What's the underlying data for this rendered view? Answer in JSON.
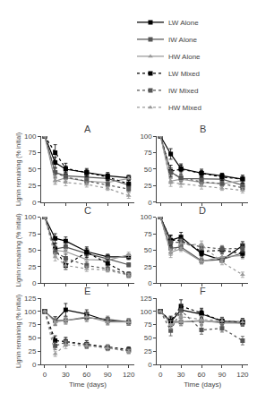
{
  "chart_data": [
    {
      "type": "line",
      "title": "A",
      "ylabel": "Lignin remaining (% initial)",
      "x": [
        0,
        15,
        30,
        60,
        90,
        120
      ],
      "xlim": [
        -5,
        128
      ],
      "xticks": [
        0,
        30,
        60,
        90,
        120
      ],
      "ylim": [
        0,
        100
      ],
      "yticks": [
        0,
        25,
        50,
        75,
        100
      ],
      "grid": false,
      "tick_labels": "y",
      "series": [
        {
          "name": "LW Alone",
          "color": "#000000",
          "line_style": "solid",
          "marker": "square",
          "values": [
            100,
            60,
            50,
            45,
            40,
            37
          ],
          "error": [
            0,
            8,
            5,
            4,
            5,
            4
          ]
        },
        {
          "name": "IW Alone",
          "color": "#555555",
          "line_style": "solid",
          "marker": "square",
          "values": [
            100,
            45,
            40,
            38,
            36,
            26
          ],
          "error": [
            0,
            6,
            5,
            4,
            4,
            3
          ]
        },
        {
          "name": "HW Alone",
          "color": "#999999",
          "line_style": "solid",
          "marker": "triangle-up",
          "values": [
            100,
            32,
            37,
            32,
            30,
            36
          ],
          "error": [
            0,
            4,
            3,
            3,
            3,
            3
          ]
        },
        {
          "name": "LW Mixed",
          "color": "#000000",
          "line_style": "dot",
          "marker": "square",
          "values": [
            100,
            75,
            51,
            45,
            38,
            28
          ],
          "error": [
            0,
            12,
            8,
            6,
            5,
            5
          ]
        },
        {
          "name": "IW Mixed",
          "color": "#555555",
          "line_style": "dot",
          "marker": "square",
          "values": [
            100,
            45,
            38,
            32,
            27,
            20
          ],
          "error": [
            0,
            8,
            6,
            5,
            4,
            4
          ]
        },
        {
          "name": "HW Mixed",
          "color": "#999999",
          "line_style": "dot",
          "marker": "triangle-up",
          "values": [
            100,
            33,
            30,
            27,
            21,
            10
          ],
          "error": [
            0,
            6,
            5,
            4,
            3,
            4
          ]
        }
      ]
    },
    {
      "type": "line",
      "title": "B",
      "legend": "upper right",
      "x": [
        0,
        15,
        30,
        60,
        90,
        120
      ],
      "xlim": [
        -5,
        128
      ],
      "xticks": [
        0,
        30,
        60,
        90,
        120
      ],
      "ylim": [
        0,
        100
      ],
      "yticks": [
        0,
        25,
        50,
        75,
        100
      ],
      "grid": false,
      "tick_labels": "y",
      "series": [
        {
          "name": "LW Alone",
          "color": "#000000",
          "line_style": "solid",
          "marker": "square",
          "values": [
            100,
            73,
            51,
            44,
            40,
            35
          ],
          "error": [
            0,
            8,
            5,
            4,
            4,
            4
          ]
        },
        {
          "name": "IW Alone",
          "color": "#555555",
          "line_style": "solid",
          "marker": "square",
          "values": [
            100,
            46,
            36,
            36,
            35,
            26
          ],
          "error": [
            0,
            6,
            4,
            4,
            4,
            3
          ]
        },
        {
          "name": "HW Alone",
          "color": "#999999",
          "line_style": "solid",
          "marker": "triangle-up",
          "values": [
            100,
            32,
            35,
            30,
            28,
            33
          ],
          "error": [
            0,
            4,
            3,
            3,
            3,
            4
          ]
        },
        {
          "name": "LW Mixed",
          "color": "#000000",
          "line_style": "dot",
          "marker": "square",
          "values": [
            100,
            47,
            50,
            44,
            38,
            35
          ],
          "error": [
            0,
            9,
            8,
            6,
            5,
            6
          ]
        },
        {
          "name": "IW Mixed",
          "color": "#555555",
          "line_style": "dot",
          "marker": "square",
          "values": [
            100,
            45,
            37,
            31,
            28,
            22
          ],
          "error": [
            0,
            7,
            6,
            5,
            4,
            4
          ]
        },
        {
          "name": "HW Mixed",
          "color": "#999999",
          "line_style": "dot",
          "marker": "triangle-up",
          "values": [
            100,
            30,
            28,
            25,
            21,
            18
          ],
          "error": [
            0,
            6,
            5,
            5,
            3,
            4
          ]
        }
      ]
    },
    {
      "type": "line",
      "title": "C",
      "ylabel": "Lignin remaining (% initial)",
      "x": [
        0,
        15,
        30,
        60,
        90,
        120
      ],
      "xlim": [
        -5,
        128
      ],
      "xticks": [
        0,
        30,
        60,
        90,
        120
      ],
      "ylim": [
        0,
        100
      ],
      "yticks": [
        0,
        25,
        50,
        75,
        100
      ],
      "grid": false,
      "tick_labels": "y",
      "series": [
        {
          "name": "LW Alone",
          "color": "#000000",
          "line_style": "solid",
          "marker": "square",
          "values": [
            100,
            68,
            64,
            48,
            40,
            40
          ],
          "error": [
            0,
            7,
            6,
            5,
            4,
            4
          ]
        },
        {
          "name": "IW Alone",
          "color": "#555555",
          "line_style": "solid",
          "marker": "square",
          "values": [
            100,
            52,
            55,
            45,
            37,
            28
          ],
          "error": [
            0,
            5,
            5,
            4,
            4,
            3
          ]
        },
        {
          "name": "HW Alone",
          "color": "#999999",
          "line_style": "solid",
          "marker": "triangle-up",
          "values": [
            100,
            50,
            48,
            36,
            35,
            43
          ],
          "error": [
            0,
            5,
            4,
            4,
            3,
            4
          ]
        },
        {
          "name": "LW Mixed",
          "color": "#000000",
          "line_style": "dot",
          "marker": "square",
          "values": [
            100,
            52,
            27,
            47,
            30,
            13
          ],
          "error": [
            0,
            8,
            6,
            8,
            6,
            4
          ]
        },
        {
          "name": "IW Mixed",
          "color": "#555555",
          "line_style": "dot",
          "marker": "square",
          "values": [
            100,
            48,
            38,
            27,
            22,
            13
          ],
          "error": [
            0,
            7,
            6,
            5,
            4,
            4
          ]
        },
        {
          "name": "HW Mixed",
          "color": "#999999",
          "line_style": "dot",
          "marker": "triangle-up",
          "values": [
            100,
            40,
            27,
            22,
            20,
            12
          ],
          "error": [
            0,
            6,
            5,
            4,
            3,
            3
          ]
        }
      ]
    },
    {
      "type": "line",
      "title": "D",
      "x": [
        0,
        15,
        30,
        60,
        90,
        120
      ],
      "xlim": [
        -5,
        128
      ],
      "xticks": [
        0,
        30,
        60,
        90,
        120
      ],
      "ylim": [
        0,
        100
      ],
      "yticks": [
        0,
        25,
        50,
        75,
        100
      ],
      "grid": false,
      "tick_labels": "y",
      "series": [
        {
          "name": "LW Alone",
          "color": "#000000",
          "line_style": "solid",
          "marker": "square",
          "values": [
            100,
            65,
            70,
            45,
            35,
            57
          ],
          "error": [
            0,
            7,
            7,
            5,
            4,
            6
          ]
        },
        {
          "name": "IW Alone",
          "color": "#555555",
          "line_style": "solid",
          "marker": "square",
          "values": [
            100,
            53,
            55,
            34,
            36,
            46
          ],
          "error": [
            0,
            6,
            5,
            4,
            4,
            5
          ]
        },
        {
          "name": "HW Alone",
          "color": "#999999",
          "line_style": "solid",
          "marker": "triangle-up",
          "values": [
            100,
            47,
            52,
            33,
            40,
            42
          ],
          "error": [
            0,
            5,
            4,
            4,
            4,
            5
          ]
        },
        {
          "name": "LW Mixed",
          "color": "#000000",
          "line_style": "dot",
          "marker": "square",
          "values": [
            100,
            65,
            65,
            48,
            50,
            45
          ],
          "error": [
            0,
            8,
            7,
            6,
            5,
            6
          ]
        },
        {
          "name": "IW Mixed",
          "color": "#555555",
          "line_style": "dot",
          "marker": "square",
          "values": [
            100,
            62,
            62,
            55,
            52,
            53
          ],
          "error": [
            0,
            7,
            6,
            5,
            5,
            6
          ]
        },
        {
          "name": "HW Mixed",
          "color": "#999999",
          "line_style": "dot",
          "marker": "triangle-up",
          "values": [
            100,
            45,
            60,
            58,
            32,
            13
          ],
          "error": [
            0,
            6,
            6,
            6,
            4,
            4
          ]
        }
      ]
    },
    {
      "type": "line",
      "title": "E",
      "xlabel": "Time (days)",
      "ylabel": "Lignin remaining (% initial)",
      "x": [
        0,
        15,
        30,
        60,
        90,
        120
      ],
      "xlim": [
        -5,
        128
      ],
      "xticks": [
        0,
        30,
        60,
        90,
        120
      ],
      "ylim": [
        0,
        125
      ],
      "yticks": [
        0,
        25,
        50,
        75,
        100,
        125
      ],
      "grid": false,
      "series": [
        {
          "name": "LW Alone",
          "color": "#000000",
          "line_style": "solid",
          "marker": "square",
          "values": [
            100,
            82,
            103,
            95,
            82,
            80
          ],
          "error": [
            0,
            8,
            12,
            8,
            6,
            6
          ]
        },
        {
          "name": "IW Alone",
          "color": "#555555",
          "line_style": "solid",
          "marker": "square",
          "values": [
            100,
            83,
            83,
            88,
            85,
            80
          ],
          "error": [
            0,
            7,
            7,
            7,
            6,
            6
          ]
        },
        {
          "name": "HW Alone",
          "color": "#999999",
          "line_style": "solid",
          "marker": "triangle-up",
          "values": [
            100,
            80,
            83,
            90,
            80,
            80
          ],
          "error": [
            0,
            7,
            6,
            7,
            6,
            6
          ]
        },
        {
          "name": "LW Mixed",
          "color": "#000000",
          "line_style": "dot",
          "marker": "square",
          "values": [
            100,
            45,
            43,
            38,
            32,
            28
          ],
          "error": [
            0,
            9,
            8,
            7,
            5,
            5
          ]
        },
        {
          "name": "IW Mixed",
          "color": "#555555",
          "line_style": "dot",
          "marker": "square",
          "values": [
            100,
            35,
            42,
            36,
            31,
            26
          ],
          "error": [
            0,
            7,
            7,
            6,
            5,
            5
          ]
        },
        {
          "name": "HW Mixed",
          "color": "#999999",
          "line_style": "dot",
          "marker": "triangle-up",
          "values": [
            100,
            20,
            37,
            35,
            31,
            24
          ],
          "error": [
            0,
            5,
            7,
            5,
            5,
            4
          ]
        }
      ]
    },
    {
      "type": "line",
      "title": "F",
      "xlabel": "Time (days)",
      "x": [
        0,
        15,
        30,
        60,
        90,
        120
      ],
      "xlim": [
        -5,
        128
      ],
      "xticks": [
        0,
        30,
        60,
        90,
        120
      ],
      "ylim": [
        0,
        125
      ],
      "yticks": [
        0,
        25,
        50,
        75,
        100,
        125
      ],
      "grid": false,
      "series": [
        {
          "name": "LW Alone",
          "color": "#000000",
          "line_style": "solid",
          "marker": "square",
          "values": [
            100,
            80,
            103,
            95,
            82,
            80
          ],
          "error": [
            0,
            8,
            10,
            8,
            6,
            6
          ]
        },
        {
          "name": "IW Alone",
          "color": "#555555",
          "line_style": "solid",
          "marker": "square",
          "values": [
            100,
            82,
            80,
            82,
            80,
            78
          ],
          "error": [
            0,
            7,
            7,
            7,
            6,
            6
          ]
        },
        {
          "name": "HW Alone",
          "color": "#999999",
          "line_style": "solid",
          "marker": "triangle-up",
          "values": [
            100,
            78,
            80,
            83,
            78,
            78
          ],
          "error": [
            0,
            7,
            6,
            7,
            6,
            6
          ]
        },
        {
          "name": "LW Mixed",
          "color": "#000000",
          "line_style": "dot",
          "marker": "square",
          "values": [
            100,
            82,
            110,
            97,
            82,
            80
          ],
          "error": [
            0,
            9,
            12,
            9,
            7,
            7
          ]
        },
        {
          "name": "IW Mixed",
          "color": "#555555",
          "line_style": "dot",
          "marker": "square",
          "values": [
            100,
            64,
            102,
            65,
            68,
            45
          ],
          "error": [
            0,
            10,
            12,
            8,
            7,
            8
          ]
        },
        {
          "name": "HW Mixed",
          "color": "#999999",
          "line_style": "dot",
          "marker": "triangle-up",
          "values": [
            100,
            75,
            90,
            85,
            82,
            80
          ],
          "error": [
            0,
            8,
            8,
            7,
            6,
            6
          ]
        }
      ]
    }
  ]
}
